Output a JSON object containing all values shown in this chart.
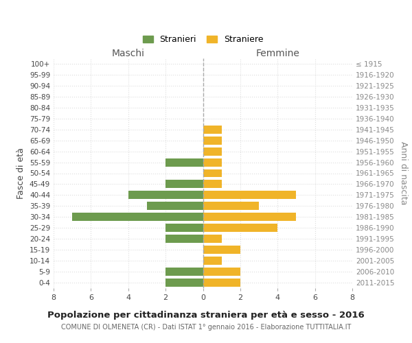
{
  "age_groups": [
    "100+",
    "95-99",
    "90-94",
    "85-89",
    "80-84",
    "75-79",
    "70-74",
    "65-69",
    "60-64",
    "55-59",
    "50-54",
    "45-49",
    "40-44",
    "35-39",
    "30-34",
    "25-29",
    "20-24",
    "15-19",
    "10-14",
    "5-9",
    "0-4"
  ],
  "birth_years": [
    "≤ 1915",
    "1916-1920",
    "1921-1925",
    "1926-1930",
    "1931-1935",
    "1936-1940",
    "1941-1945",
    "1946-1950",
    "1951-1955",
    "1956-1960",
    "1961-1965",
    "1966-1970",
    "1971-1975",
    "1976-1980",
    "1981-1985",
    "1986-1990",
    "1991-1995",
    "1996-2000",
    "2001-2005",
    "2006-2010",
    "2011-2015"
  ],
  "males": [
    0,
    0,
    0,
    0,
    0,
    0,
    0,
    0,
    0,
    2,
    0,
    2,
    4,
    3,
    7,
    2,
    2,
    0,
    0,
    2,
    2
  ],
  "females": [
    0,
    0,
    0,
    0,
    0,
    0,
    1,
    1,
    1,
    1,
    1,
    1,
    5,
    3,
    5,
    4,
    1,
    2,
    1,
    2,
    2
  ],
  "male_color": "#6d9b4e",
  "female_color": "#f0b429",
  "male_label": "Stranieri",
  "female_label": "Straniere",
  "xlim": 8,
  "title": "Popolazione per cittadinanza straniera per età e sesso - 2016",
  "subtitle": "COMUNE DI OLMENETA (CR) - Dati ISTAT 1° gennaio 2016 - Elaborazione TUTTITALIA.IT",
  "left_label": "Maschi",
  "right_label": "Femmine",
  "y_left_label": "Fasce di età",
  "y_right_label": "Anni di nascita",
  "background_color": "#ffffff",
  "grid_color": "#dddddd",
  "center_line_color": "#aaaaaa"
}
